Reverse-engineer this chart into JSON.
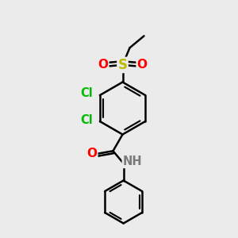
{
  "background_color": "#ebebeb",
  "bond_color": "#000000",
  "bond_width": 1.8,
  "atom_colors": {
    "C": "#000000",
    "H": "#7a7a7a",
    "Cl": "#00bb00",
    "O": "#ff0000",
    "S": "#bbbb00",
    "N": "#0000ee",
    "NH": "#7a7a7a"
  },
  "font_size": 10.5
}
